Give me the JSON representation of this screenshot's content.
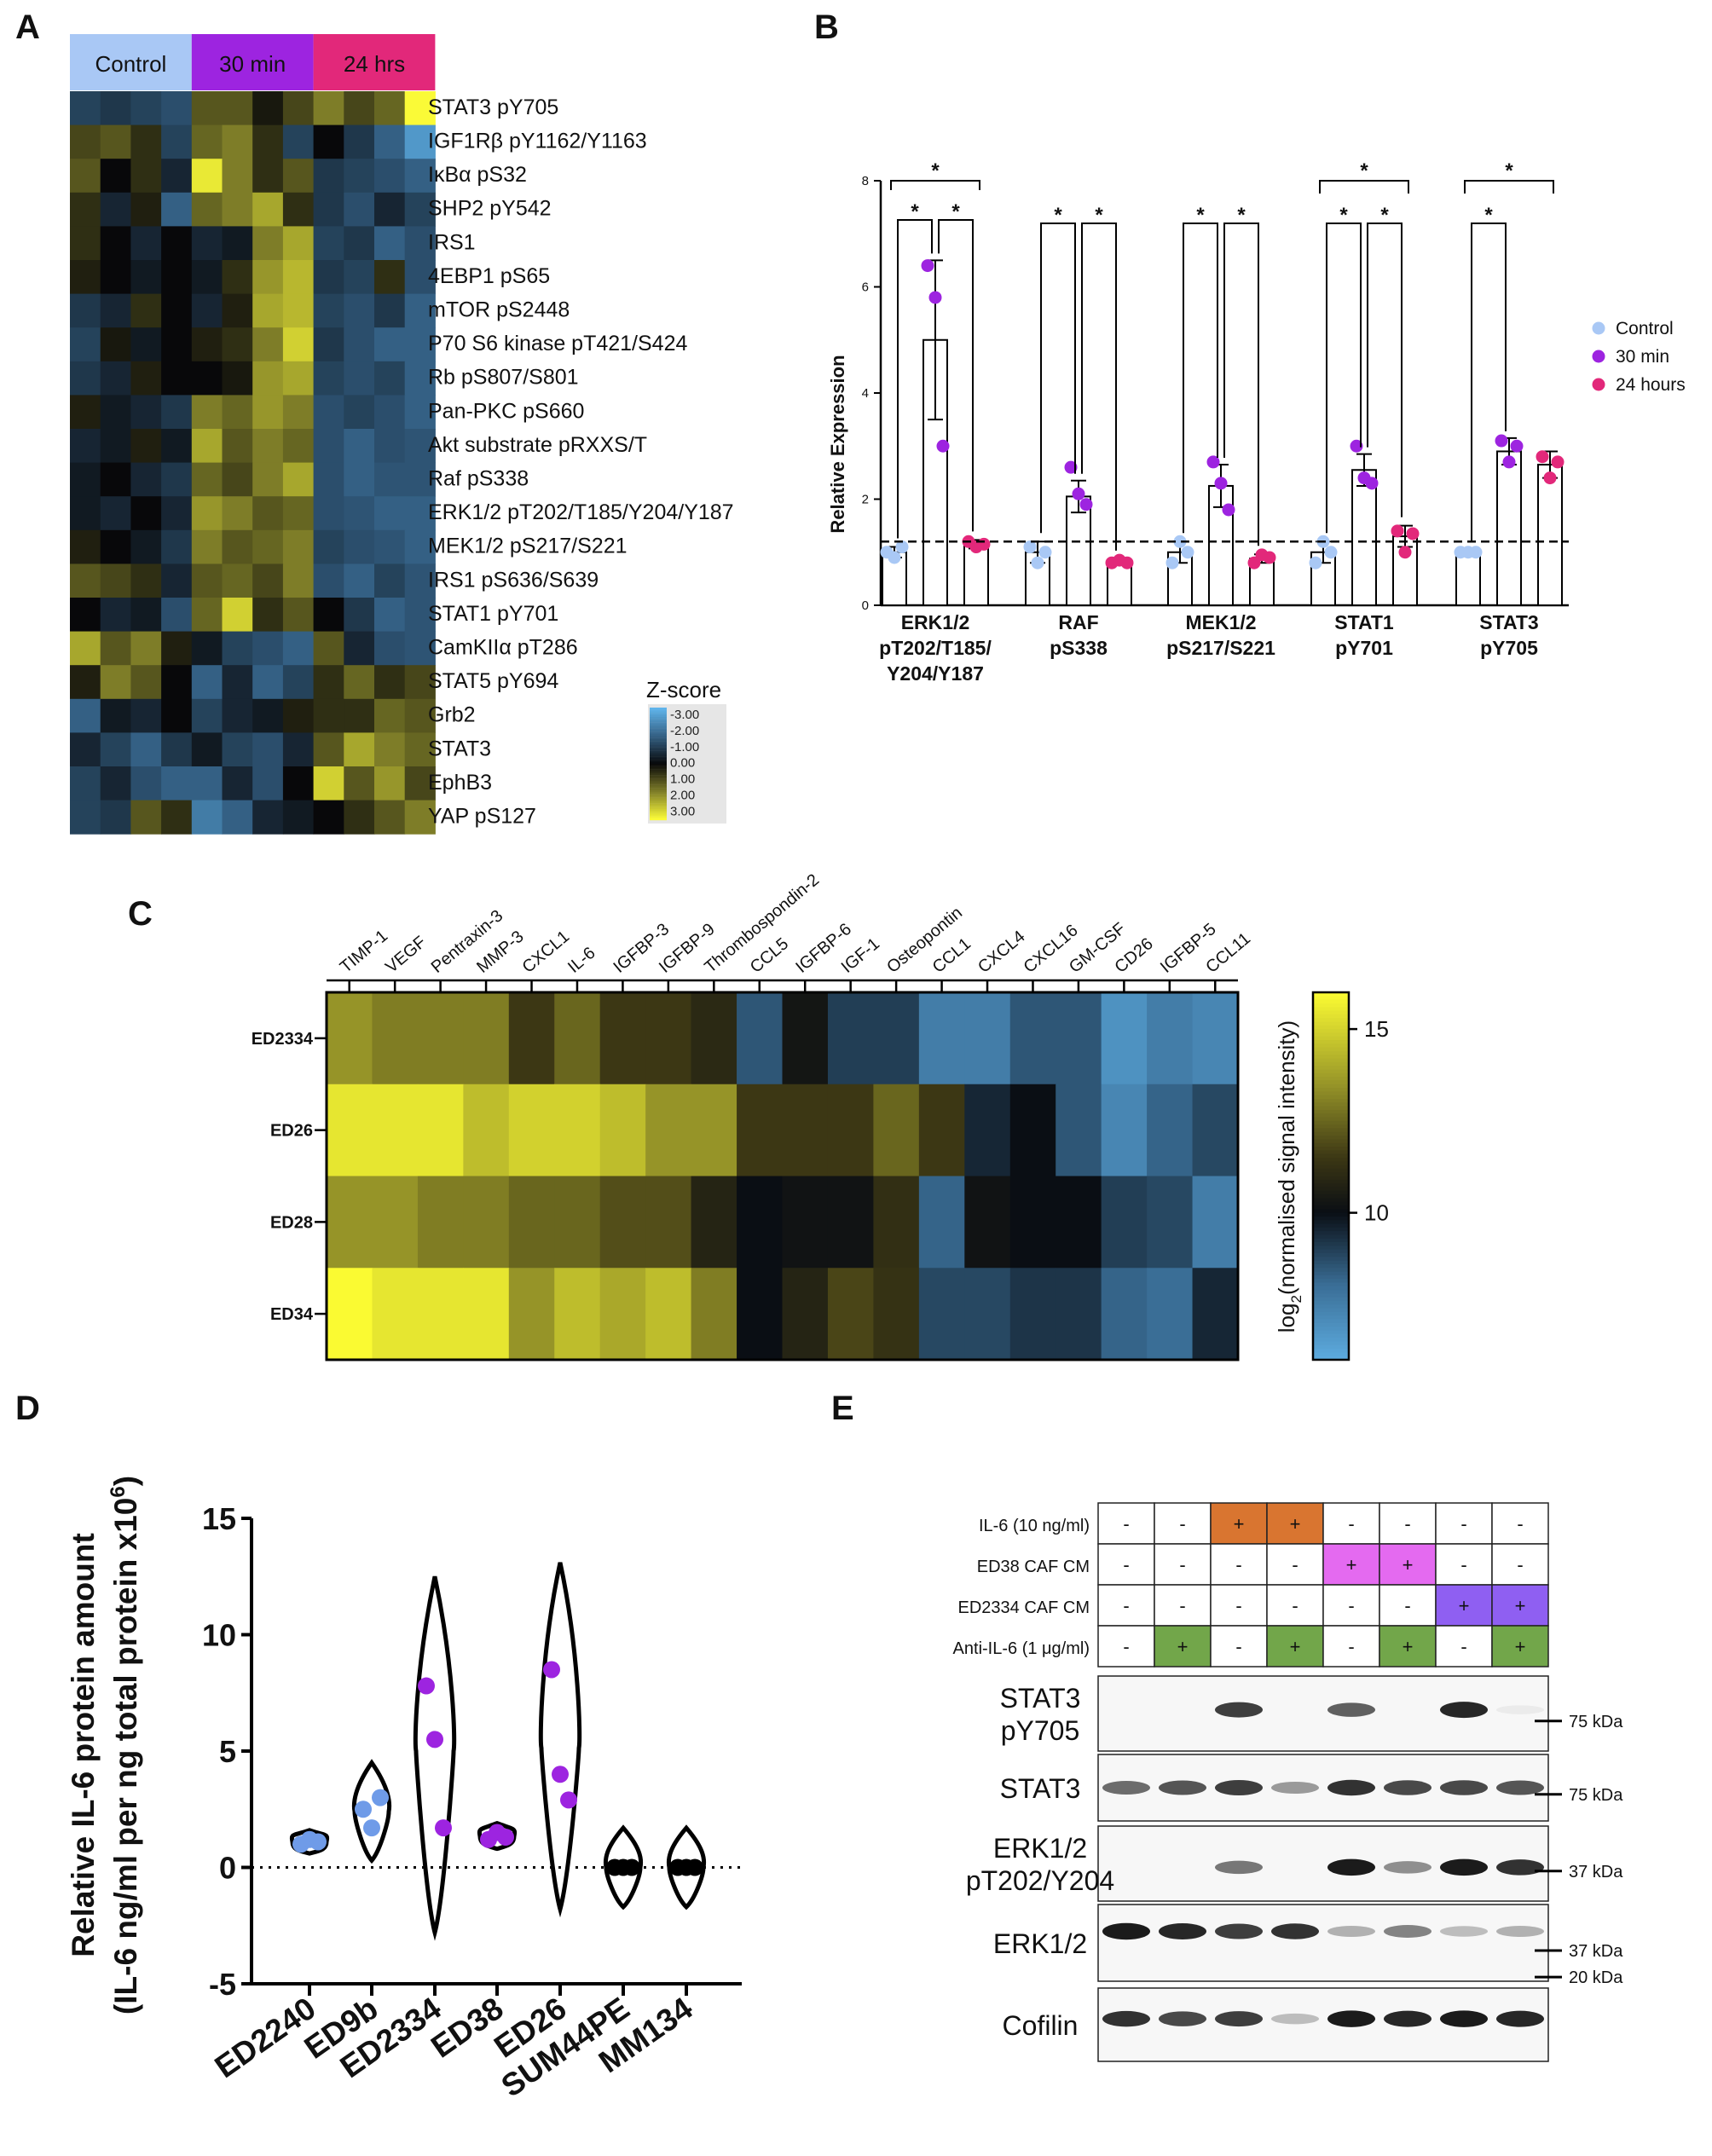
{
  "panels": {
    "a": "A",
    "b": "B",
    "c": "C",
    "d": "D",
    "e": "E"
  },
  "panel_a": {
    "groups": [
      {
        "label": "Control",
        "color": "#a9c8f5"
      },
      {
        "label": "30 min",
        "color": "#9d24e0"
      },
      {
        "label": "24 hrs",
        "color": "#e2287a"
      }
    ],
    "rows": [
      "STAT3 pY705",
      "IGF1Rβ pY1162/Y1163",
      "IκBα pS32",
      "SHP2 pY542",
      "IRS1",
      "4EBP1 pS65",
      "mTOR pS2448",
      "P70 S6 kinase pT421/S424",
      "Rb pS807/S801",
      "Pan-PKC pS660",
      "Akt substrate pRXXS/T",
      "Raf pS338",
      "ERK1/2 pT202/T185/Y204/Y187",
      "MEK1/2 pS217/S221",
      "IRS1 pS636/S639",
      "STAT1 pY701",
      "CamKIIα pT286",
      "STAT5 pY694",
      "Grb2",
      "STAT3",
      "EphB3",
      "YAP pS127"
    ],
    "legend_title": "Z-score",
    "legend_ticks": [
      "-3.00",
      "-2.00",
      "-1.00",
      "0.00",
      "1.00",
      "2.00",
      "3.00"
    ],
    "z": [
      [
        -1,
        -0.8,
        -1,
        -1.2,
        1,
        1,
        0.2,
        0.8,
        1.5,
        0.8,
        1.2,
        3
      ],
      [
        0.8,
        1,
        0.5,
        -1,
        1.2,
        1.5,
        0.5,
        -1,
        0,
        -0.8,
        -1.5,
        -2.5
      ],
      [
        1,
        0,
        0.5,
        -0.5,
        2.8,
        1.5,
        0.5,
        1,
        -0.8,
        -1,
        -1.2,
        -1.5
      ],
      [
        0.5,
        -0.5,
        0.3,
        -1.5,
        1.2,
        1.5,
        2,
        0.5,
        -0.8,
        -1.2,
        -0.5,
        -1
      ],
      [
        0.5,
        0,
        -0.5,
        0,
        -0.5,
        -0.3,
        1.5,
        2,
        -1,
        -0.8,
        -1.5,
        -1.2
      ],
      [
        0.3,
        0,
        -0.3,
        0,
        -0.3,
        0.5,
        1.8,
        2.2,
        -0.8,
        -1,
        0.5,
        -1.2
      ],
      [
        -0.8,
        -0.5,
        0.5,
        0,
        -0.5,
        0.3,
        2,
        2.2,
        -1,
        -1.2,
        -0.8,
        -1.5
      ],
      [
        -1,
        0.2,
        -0.3,
        0,
        0.3,
        0.5,
        1.5,
        2.5,
        -0.8,
        -1.2,
        -1.5,
        -1.5
      ],
      [
        -0.8,
        -0.5,
        0.3,
        0,
        0,
        0.2,
        1.8,
        2,
        -1,
        -1.2,
        -1,
        -1.5
      ],
      [
        0.3,
        -0.3,
        -0.5,
        -0.8,
        1.5,
        1.2,
        1.8,
        1.5,
        -1.2,
        -1,
        -1.2,
        -1.5
      ],
      [
        -0.5,
        -0.3,
        0.3,
        -0.3,
        2,
        1,
        1.5,
        1.2,
        -1.2,
        -1.5,
        -1.2,
        -1.3
      ],
      [
        -0.3,
        0,
        -0.5,
        -0.8,
        1.2,
        0.8,
        1.5,
        2,
        -1.2,
        -1.5,
        -1.3,
        -1.3
      ],
      [
        -0.3,
        -0.5,
        0,
        -0.5,
        1.8,
        1.5,
        1,
        1.2,
        -1.2,
        -1.3,
        -1.5,
        -1.5
      ],
      [
        0.3,
        0,
        -0.3,
        -0.8,
        1.5,
        1,
        1.2,
        1.5,
        -1,
        -1.2,
        -1.3,
        -1.5
      ],
      [
        1,
        0.8,
        0.5,
        -0.5,
        1,
        1.2,
        0.8,
        1.5,
        -1.2,
        -1.5,
        -1,
        -1.3
      ],
      [
        0,
        -0.5,
        -0.3,
        -1.2,
        1.2,
        2.5,
        0.5,
        1,
        0,
        -0.8,
        -1.5,
        -1.3
      ],
      [
        2,
        1,
        1.5,
        0.3,
        -0.3,
        -1,
        -1.2,
        -1.5,
        1,
        -0.5,
        -1.2,
        -1.3
      ],
      [
        0.3,
        1.5,
        1,
        0,
        -1.5,
        -0.5,
        -1.5,
        -1,
        0.5,
        1.2,
        0.5,
        0.8
      ],
      [
        -1.5,
        -0.3,
        -0.5,
        0,
        -1,
        -0.5,
        -0.3,
        0.3,
        0.5,
        0.5,
        1.2,
        1
      ],
      [
        -0.5,
        -1,
        -1.5,
        -0.8,
        -0.3,
        -1,
        -1.2,
        -0.5,
        1,
        2,
        1.5,
        1.2
      ],
      [
        -1,
        -0.5,
        -1.2,
        -1.5,
        -1.5,
        -0.5,
        -1.2,
        0,
        2.5,
        1,
        1.8,
        0.8
      ],
      [
        -1,
        -0.8,
        1,
        0.5,
        -2,
        -1.5,
        -0.5,
        -0.3,
        0,
        0.5,
        1,
        1.5
      ]
    ]
  },
  "panel_b": {
    "chart_data": {
      "type": "bar",
      "ylabel": "Relative Expression",
      "ylim": [
        0,
        8
      ],
      "yticks": [
        "0",
        "2",
        "4",
        "6",
        "8"
      ],
      "categories": [
        "ERK1/2 pT202/T185/ Y204/Y187",
        "RAF pS338",
        "MEK1/2 pS217/S221",
        "STAT1 pY701",
        "STAT3 pY705"
      ],
      "category_lines": [
        [
          "ERK1/2",
          "pT202/T185/",
          "Y204/Y187"
        ],
        [
          "RAF",
          "pS338"
        ],
        [
          "MEK1/2",
          "pS217/S221"
        ],
        [
          "STAT1",
          "pY701"
        ],
        [
          "STAT3",
          "pY705"
        ]
      ],
      "reference_line": 1.2,
      "series": [
        {
          "name": "Control",
          "color": "#a9c8f5",
          "values": [
            1.0,
            1.0,
            1.0,
            1.0,
            1.0
          ],
          "err": [
            0.1,
            0.2,
            0.2,
            0.2,
            0.05
          ],
          "points": [
            [
              1.0,
              0.9,
              1.1
            ],
            [
              1.1,
              0.8,
              1.0
            ],
            [
              0.8,
              1.2,
              1.0
            ],
            [
              0.8,
              1.2,
              1.0
            ],
            [
              1.0,
              1.0,
              1.0
            ]
          ]
        },
        {
          "name": "30 min",
          "color": "#9d24e0",
          "values": [
            5.0,
            2.05,
            2.25,
            2.55,
            2.9
          ],
          "err": [
            1.5,
            0.3,
            0.4,
            0.3,
            0.25
          ],
          "points": [
            [
              6.4,
              5.8,
              3.0
            ],
            [
              2.6,
              2.1,
              1.9
            ],
            [
              2.7,
              2.3,
              1.8
            ],
            [
              3.0,
              2.4,
              2.3
            ],
            [
              3.1,
              2.7,
              3.0
            ]
          ]
        },
        {
          "name": "24 hours",
          "color": "#e2287a",
          "values": [
            1.15,
            0.82,
            0.88,
            1.3,
            2.65
          ],
          "err": [
            0.08,
            0.05,
            0.08,
            0.2,
            0.25
          ],
          "points": [
            [
              1.2,
              1.1,
              1.15
            ],
            [
              0.8,
              0.85,
              0.8
            ],
            [
              0.8,
              0.95,
              0.9
            ],
            [
              1.4,
              1.0,
              1.35
            ],
            [
              2.8,
              2.4,
              2.7
            ]
          ]
        }
      ],
      "significance_marker": "*"
    }
  },
  "panel_c": {
    "chart_data": {
      "type": "heatmap",
      "colorbar_label_prefix": "log",
      "colorbar_label_sub": "2",
      "colorbar_label_suffix": "(normalised signal intensity)",
      "colorbar_ticks": [
        "15",
        "10"
      ],
      "colorbar_range": [
        6,
        16
      ],
      "columns": [
        "TIMP-1",
        "VEGF",
        "Pentraxin-3",
        "MMP-3",
        "CXCL1",
        "IL-6",
        "IGFBP-3",
        "IGFBP-9",
        "Thrombospondin-2",
        "CCL5",
        "IGFBP-6",
        "IGF-1",
        "Osteopontin",
        "CCL1",
        "CXCL4",
        "CXCL16",
        "GM-CSF",
        "CD26",
        "IGFBP-5",
        "CCL11"
      ],
      "rows": [
        "ED2334",
        "ED26",
        "ED28",
        "ED34"
      ],
      "cells": [
        [
          13.5,
          13,
          13,
          13,
          11.5,
          12.5,
          11.5,
          11.5,
          11,
          8.5,
          10.3,
          9,
          9,
          7.5,
          7.5,
          8.5,
          8.5,
          6.8,
          7.5,
          7.2
        ],
        [
          15.5,
          15.5,
          15.5,
          14.5,
          15,
          15,
          14.5,
          13.5,
          13.5,
          11.5,
          11.5,
          11.5,
          12.5,
          11.5,
          9.5,
          10,
          8.5,
          7.2,
          8.2,
          8.8
        ],
        [
          13.5,
          13.5,
          13,
          13,
          12.5,
          12.5,
          12,
          12,
          10.8,
          10,
          10.2,
          10.2,
          11.2,
          8.2,
          10.2,
          10,
          10,
          9,
          8.8,
          7.5
        ],
        [
          16,
          15.5,
          15.5,
          15.5,
          13.5,
          14.5,
          14,
          14.5,
          13,
          10,
          10.8,
          11.8,
          11.3,
          8.8,
          8.8,
          9.2,
          9.2,
          8.2,
          8,
          9.5
        ]
      ]
    }
  },
  "panel_d": {
    "chart_data": {
      "type": "scatter",
      "ylabel_line1": "Relative IL-6 protein amount",
      "ylabel_line2": "(IL-6 ng/ml per ng total protein x10",
      "ylabel_sup": "6",
      "ylabel_close": ")",
      "ylim": [
        -5,
        15
      ],
      "yticks": [
        "15",
        "10",
        "5",
        "0",
        "-5"
      ],
      "categories": [
        "ED2240",
        "ED9b",
        "ED2334",
        "ED38",
        "ED26",
        "SUM44PE",
        "MM134"
      ],
      "colors": [
        "#6f9be8",
        "#6f9be8",
        "#9d24e0",
        "#9d24e0",
        "#9d24e0",
        "#000000",
        "#000000"
      ],
      "points": [
        [
          1.0,
          1.2,
          1.1
        ],
        [
          2.5,
          1.7,
          3.0
        ],
        [
          7.8,
          5.5,
          1.7
        ],
        [
          1.2,
          1.5,
          1.3
        ],
        [
          8.5,
          4.0,
          2.9
        ],
        [
          0,
          0,
          0
        ],
        [
          0,
          0,
          0
        ]
      ],
      "violin_range": [
        [
          0.6,
          1.6
        ],
        [
          0.3,
          4.5
        ],
        [
          -2.8,
          12.5
        ],
        [
          0.8,
          1.9
        ],
        [
          -1.8,
          13.1
        ],
        [
          -1.7,
          1.7
        ],
        [
          -1.7,
          1.7
        ]
      ]
    }
  },
  "panel_e": {
    "conditions": [
      {
        "label": "IL-6 (10 ng/ml)",
        "values": [
          "-",
          "-",
          "+",
          "+",
          "-",
          "-",
          "-",
          "-"
        ],
        "color": "#d97530"
      },
      {
        "label": "ED38 CAF CM",
        "values": [
          "-",
          "-",
          "-",
          "-",
          "+",
          "+",
          "-",
          "-"
        ],
        "color": "#e46af0"
      },
      {
        "label": "ED2334 CAF CM",
        "values": [
          "-",
          "-",
          "-",
          "-",
          "-",
          "-",
          "+",
          "+"
        ],
        "color": "#8f5ff2"
      },
      {
        "label": "Anti-IL-6 (1 μg/ml)",
        "values": [
          "-",
          "+",
          "-",
          "+",
          "-",
          "+",
          "-",
          "+"
        ],
        "color": "#72a64a"
      }
    ],
    "blots": [
      {
        "label_lines": [
          "STAT3",
          "pY705"
        ],
        "marker": "75 kDa",
        "intensity": [
          0,
          0,
          0.8,
          0,
          0.65,
          0,
          0.9,
          0.05
        ]
      },
      {
        "label_lines": [
          "STAT3"
        ],
        "marker": "75 kDa",
        "intensity": [
          0.6,
          0.7,
          0.8,
          0.4,
          0.85,
          0.75,
          0.75,
          0.7
        ]
      },
      {
        "label_lines": [
          "ERK1/2",
          "pT202/Y204"
        ],
        "marker": "37 kDa",
        "intensity": [
          0,
          0,
          0.55,
          0,
          0.95,
          0.45,
          0.95,
          0.85
        ]
      },
      {
        "label_lines": [
          "ERK1/2"
        ],
        "marker": "37 kDa",
        "intensity": [
          0.95,
          0.9,
          0.8,
          0.85,
          0.3,
          0.5,
          0.25,
          0.3
        ]
      },
      {
        "label_lines": [
          "Cofilin"
        ],
        "marker": "20 kDa",
        "intensity": [
          0.85,
          0.75,
          0.8,
          0.25,
          0.95,
          0.9,
          0.95,
          0.9
        ]
      }
    ]
  }
}
